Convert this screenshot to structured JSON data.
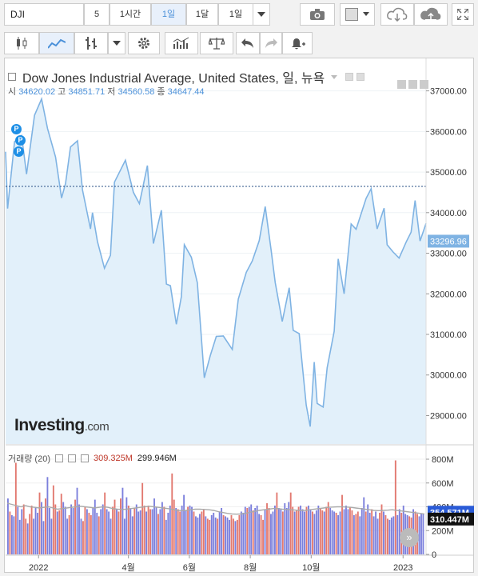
{
  "toolbar": {
    "symbol": "DJI",
    "intervals": [
      {
        "label": "5"
      },
      {
        "label": "1시간"
      },
      {
        "label": "1일",
        "active": true
      },
      {
        "label": "1달"
      },
      {
        "label": "1일"
      }
    ]
  },
  "legend": {
    "title": "Dow Jones Industrial Average, United States, 일, 뉴욕",
    "open_label": "시",
    "open": "34620.02",
    "high_label": "고",
    "high": "34851.71",
    "low_label": "저",
    "low": "34560.58",
    "close_label": "종",
    "close": "34647.44"
  },
  "price_tag": "33296.96",
  "volume_legend": {
    "label": "거래량 (20)",
    "v1": "309.325M",
    "v2": "299.946M"
  },
  "volume_tags": {
    "t1": "354.571M",
    "t2": "310.447M"
  },
  "watermark": {
    "brand": "Investing",
    "suffix": ".com"
  },
  "markers": [
    "P",
    "P",
    "P"
  ],
  "colors": {
    "line": "#7fb3e3",
    "fill": "#e2f0fa",
    "up_bar": "#7b7fdc",
    "down_bar": "#e2786f",
    "ma": "#aaaaaa",
    "tag_blue": "#2a5bd7"
  },
  "chart_data": [
    {
      "type": "area",
      "title": "Dow Jones Industrial Average, United States, 일, 뉴욕",
      "x_ticks": [
        "2022",
        "4월",
        "6월",
        "8월",
        "10월",
        "2023"
      ],
      "y_ticks": [
        29000,
        30000,
        31000,
        32000,
        33000,
        34000,
        35000,
        36000,
        37000
      ],
      "ylim": [
        28300,
        37800
      ],
      "x_range": [
        "2021-11-29",
        "2023-01-24"
      ],
      "reference_line": 34647.44,
      "last_value": 33296.96,
      "series": [
        {
          "points": [
            [
              "2021-11-29",
              35500
            ],
            [
              "2021-12-01",
              34100
            ],
            [
              "2021-12-08",
              35750
            ],
            [
              "2021-12-15",
              35900
            ],
            [
              "2021-12-20",
              34950
            ],
            [
              "2021-12-28",
              36400
            ],
            [
              "2022-01-04",
              36800
            ],
            [
              "2022-01-10",
              36070
            ],
            [
              "2022-01-18",
              35370
            ],
            [
              "2022-01-24",
              34360
            ],
            [
              "2022-01-28",
              34720
            ],
            [
              "2022-02-02",
              35620
            ],
            [
              "2022-02-09",
              35770
            ],
            [
              "2022-02-14",
              34560
            ],
            [
              "2022-02-22",
              33600
            ],
            [
              "2022-02-24",
              34000
            ],
            [
              "2022-03-01",
              33290
            ],
            [
              "2022-03-08",
              32630
            ],
            [
              "2022-03-14",
              32950
            ],
            [
              "2022-03-18",
              34750
            ],
            [
              "2022-03-29",
              35290
            ],
            [
              "2022-04-06",
              34500
            ],
            [
              "2022-04-12",
              34220
            ],
            [
              "2022-04-20",
              35160
            ],
            [
              "2022-04-26",
              33240
            ],
            [
              "2022-05-04",
              34060
            ],
            [
              "2022-05-09",
              32240
            ],
            [
              "2022-05-13",
              32200
            ],
            [
              "2022-05-19",
              31250
            ],
            [
              "2022-05-24",
              31930
            ],
            [
              "2022-05-27",
              33210
            ],
            [
              "2022-06-03",
              32900
            ],
            [
              "2022-06-09",
              32270
            ],
            [
              "2022-06-16",
              29930
            ],
            [
              "2022-06-22",
              30480
            ],
            [
              "2022-06-28",
              30950
            ],
            [
              "2022-07-05",
              30960
            ],
            [
              "2022-07-14",
              30630
            ],
            [
              "2022-07-20",
              31870
            ],
            [
              "2022-07-28",
              32530
            ],
            [
              "2022-08-03",
              32810
            ],
            [
              "2022-08-10",
              33310
            ],
            [
              "2022-08-16",
              34150
            ],
            [
              "2022-08-22",
              33060
            ],
            [
              "2022-08-26",
              32280
            ],
            [
              "2022-09-02",
              31320
            ],
            [
              "2022-09-09",
              32150
            ],
            [
              "2022-09-13",
              31100
            ],
            [
              "2022-09-19",
              31020
            ],
            [
              "2022-09-26",
              29260
            ],
            [
              "2022-09-30",
              28730
            ],
            [
              "2022-10-04",
              30320
            ],
            [
              "2022-10-07",
              29300
            ],
            [
              "2022-10-13",
              29210
            ],
            [
              "2022-10-17",
              30180
            ],
            [
              "2022-10-24",
              31080
            ],
            [
              "2022-10-28",
              32860
            ],
            [
              "2022-11-03",
              32000
            ],
            [
              "2022-11-10",
              33720
            ],
            [
              "2022-11-15",
              33590
            ],
            [
              "2022-11-25",
              34350
            ],
            [
              "2022-11-30",
              34590
            ],
            [
              "2022-12-06",
              33600
            ],
            [
              "2022-12-13",
              34110
            ],
            [
              "2022-12-16",
              33210
            ],
            [
              "2022-12-22",
              33030
            ],
            [
              "2022-12-28",
              32880
            ],
            [
              "2023-01-04",
              33270
            ],
            [
              "2023-01-09",
              33520
            ],
            [
              "2023-01-13",
              34300
            ],
            [
              "2023-01-18",
              33300
            ],
            [
              "2023-01-24",
              33733
            ]
          ]
        }
      ]
    },
    {
      "type": "bar",
      "title": "거래량 (20)",
      "y_ticks": [
        "0",
        "200M",
        "400M",
        "600M",
        "800M"
      ],
      "ylim": [
        0,
        800
      ],
      "series": [
        {
          "name": "volume",
          "values_M": [
            470,
            360,
            330,
            320,
            770,
            400,
            290,
            380,
            420,
            300,
            260,
            340,
            410,
            300,
            390,
            350,
            520,
            440,
            280,
            470,
            650,
            390,
            300,
            580,
            420,
            360,
            370,
            510,
            440,
            400,
            300,
            330,
            420,
            390,
            460,
            560,
            420,
            300,
            280,
            400,
            380,
            350,
            330,
            390,
            460,
            350,
            320,
            380,
            420,
            520,
            380,
            360,
            300,
            400,
            460,
            380,
            360,
            470,
            560,
            300,
            480,
            410,
            380,
            320,
            390,
            420,
            360,
            370,
            600,
            410,
            360,
            410,
            380,
            380,
            470,
            400,
            340,
            380,
            440,
            400,
            290,
            350,
            410,
            680,
            460,
            390,
            380,
            360,
            410,
            500,
            370,
            400,
            410,
            400,
            360,
            320,
            310,
            340,
            360,
            380,
            320,
            300,
            290,
            330,
            350,
            310,
            300,
            360,
            390,
            330,
            320,
            310,
            290,
            330,
            300,
            280,
            290,
            330,
            360,
            350,
            400,
            390,
            400,
            420,
            370,
            390,
            410,
            340,
            330,
            290,
            380,
            430,
            390,
            340,
            360,
            410,
            520,
            390,
            380,
            360,
            430,
            390,
            440,
            520,
            400,
            360,
            370,
            400,
            410,
            380,
            360,
            400,
            410,
            380,
            360,
            340,
            370,
            410,
            390,
            370,
            360,
            400,
            440,
            390,
            370,
            360,
            350,
            330,
            360,
            500,
            380,
            410,
            380,
            400,
            370,
            330,
            340,
            360,
            320,
            390,
            480,
            360,
            420,
            350,
            380,
            320,
            360,
            300,
            350,
            420,
            360,
            330,
            300,
            290,
            310,
            320,
            790,
            330,
            380,
            350,
            410,
            340,
            330,
            320,
            310,
            380,
            360,
            340,
            320,
            340,
            340
          ]
        },
        {
          "name": "MA 20",
          "values_M": [
            430,
            420,
            410,
            400,
            410,
            400,
            395,
            390,
            395,
            400,
            390,
            380,
            385,
            390,
            395,
            400,
            405,
            400,
            395,
            390,
            395,
            400,
            395,
            385,
            380,
            378,
            380,
            385,
            390,
            395,
            400,
            405,
            400,
            395,
            390,
            385,
            380,
            370,
            368,
            370,
            375,
            380,
            380,
            378,
            375,
            370,
            360,
            352,
            345,
            340,
            338,
            340,
            345,
            355,
            362,
            370,
            375,
            380,
            385,
            385,
            380,
            378,
            375,
            372,
            370,
            370,
            375,
            380,
            385,
            390,
            395,
            398,
            400,
            400,
            398,
            395,
            390,
            385,
            380,
            375,
            370,
            368,
            370,
            372,
            375,
            370,
            365,
            360,
            355,
            350,
            345,
            340
          ]
        }
      ],
      "last_values": [
        "354.571M",
        "310.447M"
      ]
    }
  ]
}
